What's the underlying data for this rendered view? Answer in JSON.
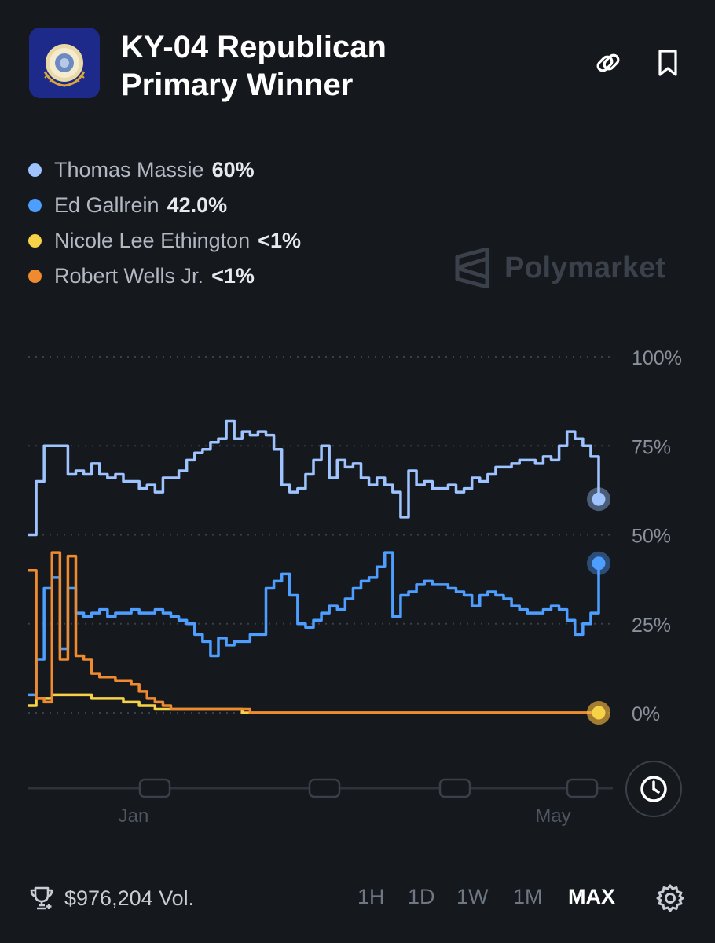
{
  "header": {
    "title_line1": "KY-04 Republican",
    "title_line2": "Primary Winner",
    "logo_text": "COMMONWEALTH OF KENTUCKY"
  },
  "legend": [
    {
      "name": "Thomas Massie",
      "value": "60%",
      "color": "#9ec3ff"
    },
    {
      "name": "Ed Gallrein",
      "value": "42.0%",
      "color": "#4d9eff"
    },
    {
      "name": "Nicole Lee Ethington",
      "value": "<1%",
      "color": "#f5d247"
    },
    {
      "name": "Robert Wells Jr.",
      "value": "<1%",
      "color": "#f08a2e"
    }
  ],
  "watermark": "Polymarket",
  "chart_data": {
    "type": "line",
    "ylim": [
      0,
      100
    ],
    "y_ticks": [
      "0%",
      "25%",
      "50%",
      "75%",
      "100%"
    ],
    "x_ticks": [
      "Jan",
      "May"
    ],
    "grid": true,
    "legend_position": "top-left",
    "series": [
      {
        "name": "Thomas Massie",
        "color": "#9ec3ff",
        "values": [
          50,
          65,
          75,
          75,
          75,
          67,
          68,
          67,
          70,
          67,
          66,
          67,
          65,
          65,
          63,
          64,
          62,
          66,
          66,
          68,
          71,
          73,
          74,
          76,
          77,
          82,
          77,
          79,
          78,
          79,
          78,
          74,
          64,
          62,
          63,
          67,
          71,
          75,
          66,
          71,
          69,
          70,
          66,
          64,
          66,
          64,
          62,
          55,
          68,
          64,
          65,
          63,
          63,
          64,
          62,
          63,
          66,
          65,
          67,
          69,
          69,
          70,
          71,
          71,
          70,
          72,
          71,
          75,
          79,
          77,
          75,
          72,
          60
        ]
      },
      {
        "name": "Ed Gallrein",
        "color": "#4d9eff",
        "values": [
          5,
          15,
          35,
          38,
          18,
          35,
          28,
          27,
          28,
          29,
          27,
          28,
          28,
          29,
          28,
          28,
          29,
          28,
          27,
          26,
          25,
          22,
          20,
          16,
          21,
          19,
          20,
          20,
          22,
          22,
          35,
          37,
          39,
          33,
          25,
          24,
          26,
          28,
          30,
          29,
          32,
          35,
          37,
          38,
          41,
          45,
          27,
          33,
          34,
          36,
          37,
          36,
          36,
          35,
          34,
          33,
          30,
          33,
          34,
          33,
          32,
          30,
          29,
          28,
          28,
          29,
          30,
          29,
          26,
          22,
          25,
          28,
          42
        ]
      },
      {
        "name": "Nicole Lee Ethington",
        "color": "#f5d247",
        "values": [
          2,
          4,
          4,
          5,
          5,
          5,
          5,
          5,
          4,
          4,
          4,
          4,
          3,
          3,
          2,
          2,
          1,
          1,
          1,
          1,
          1,
          1,
          1,
          1,
          1,
          1,
          1,
          0,
          0,
          0,
          0,
          0,
          0,
          0,
          0,
          0,
          0,
          0,
          0,
          0,
          0,
          0,
          0,
          0,
          0,
          0,
          0,
          0,
          0,
          0,
          0,
          0,
          0,
          0,
          0,
          0,
          0,
          0,
          0,
          0,
          0,
          0,
          0,
          0,
          0,
          0,
          0,
          0,
          0,
          0,
          0,
          0,
          0
        ]
      },
      {
        "name": "Robert Wells Jr.",
        "color": "#f08a2e",
        "values": [
          40,
          4,
          3,
          45,
          15,
          44,
          16,
          15,
          11,
          10,
          10,
          9,
          9,
          8,
          6,
          4,
          3,
          2,
          1,
          1,
          1,
          1,
          1,
          1,
          1,
          1,
          1,
          1,
          0,
          0,
          0,
          0,
          0,
          0,
          0,
          0,
          0,
          0,
          0,
          0,
          0,
          0,
          0,
          0,
          0,
          0,
          0,
          0,
          0,
          0,
          0,
          0,
          0,
          0,
          0,
          0,
          0,
          0,
          0,
          0,
          0,
          0,
          0,
          0,
          0,
          0,
          0,
          0,
          0,
          0,
          0,
          0,
          0
        ]
      }
    ]
  },
  "footer": {
    "volume": "$976,204 Vol.",
    "ranges": [
      "1H",
      "1D",
      "1W",
      "1M",
      "MAX"
    ],
    "active_range": "MAX"
  },
  "icons": {
    "share": "link-icon",
    "bookmark": "bookmark-icon",
    "history": "clock-icon",
    "volume": "trophy-icon",
    "settings": "gear-icon"
  }
}
